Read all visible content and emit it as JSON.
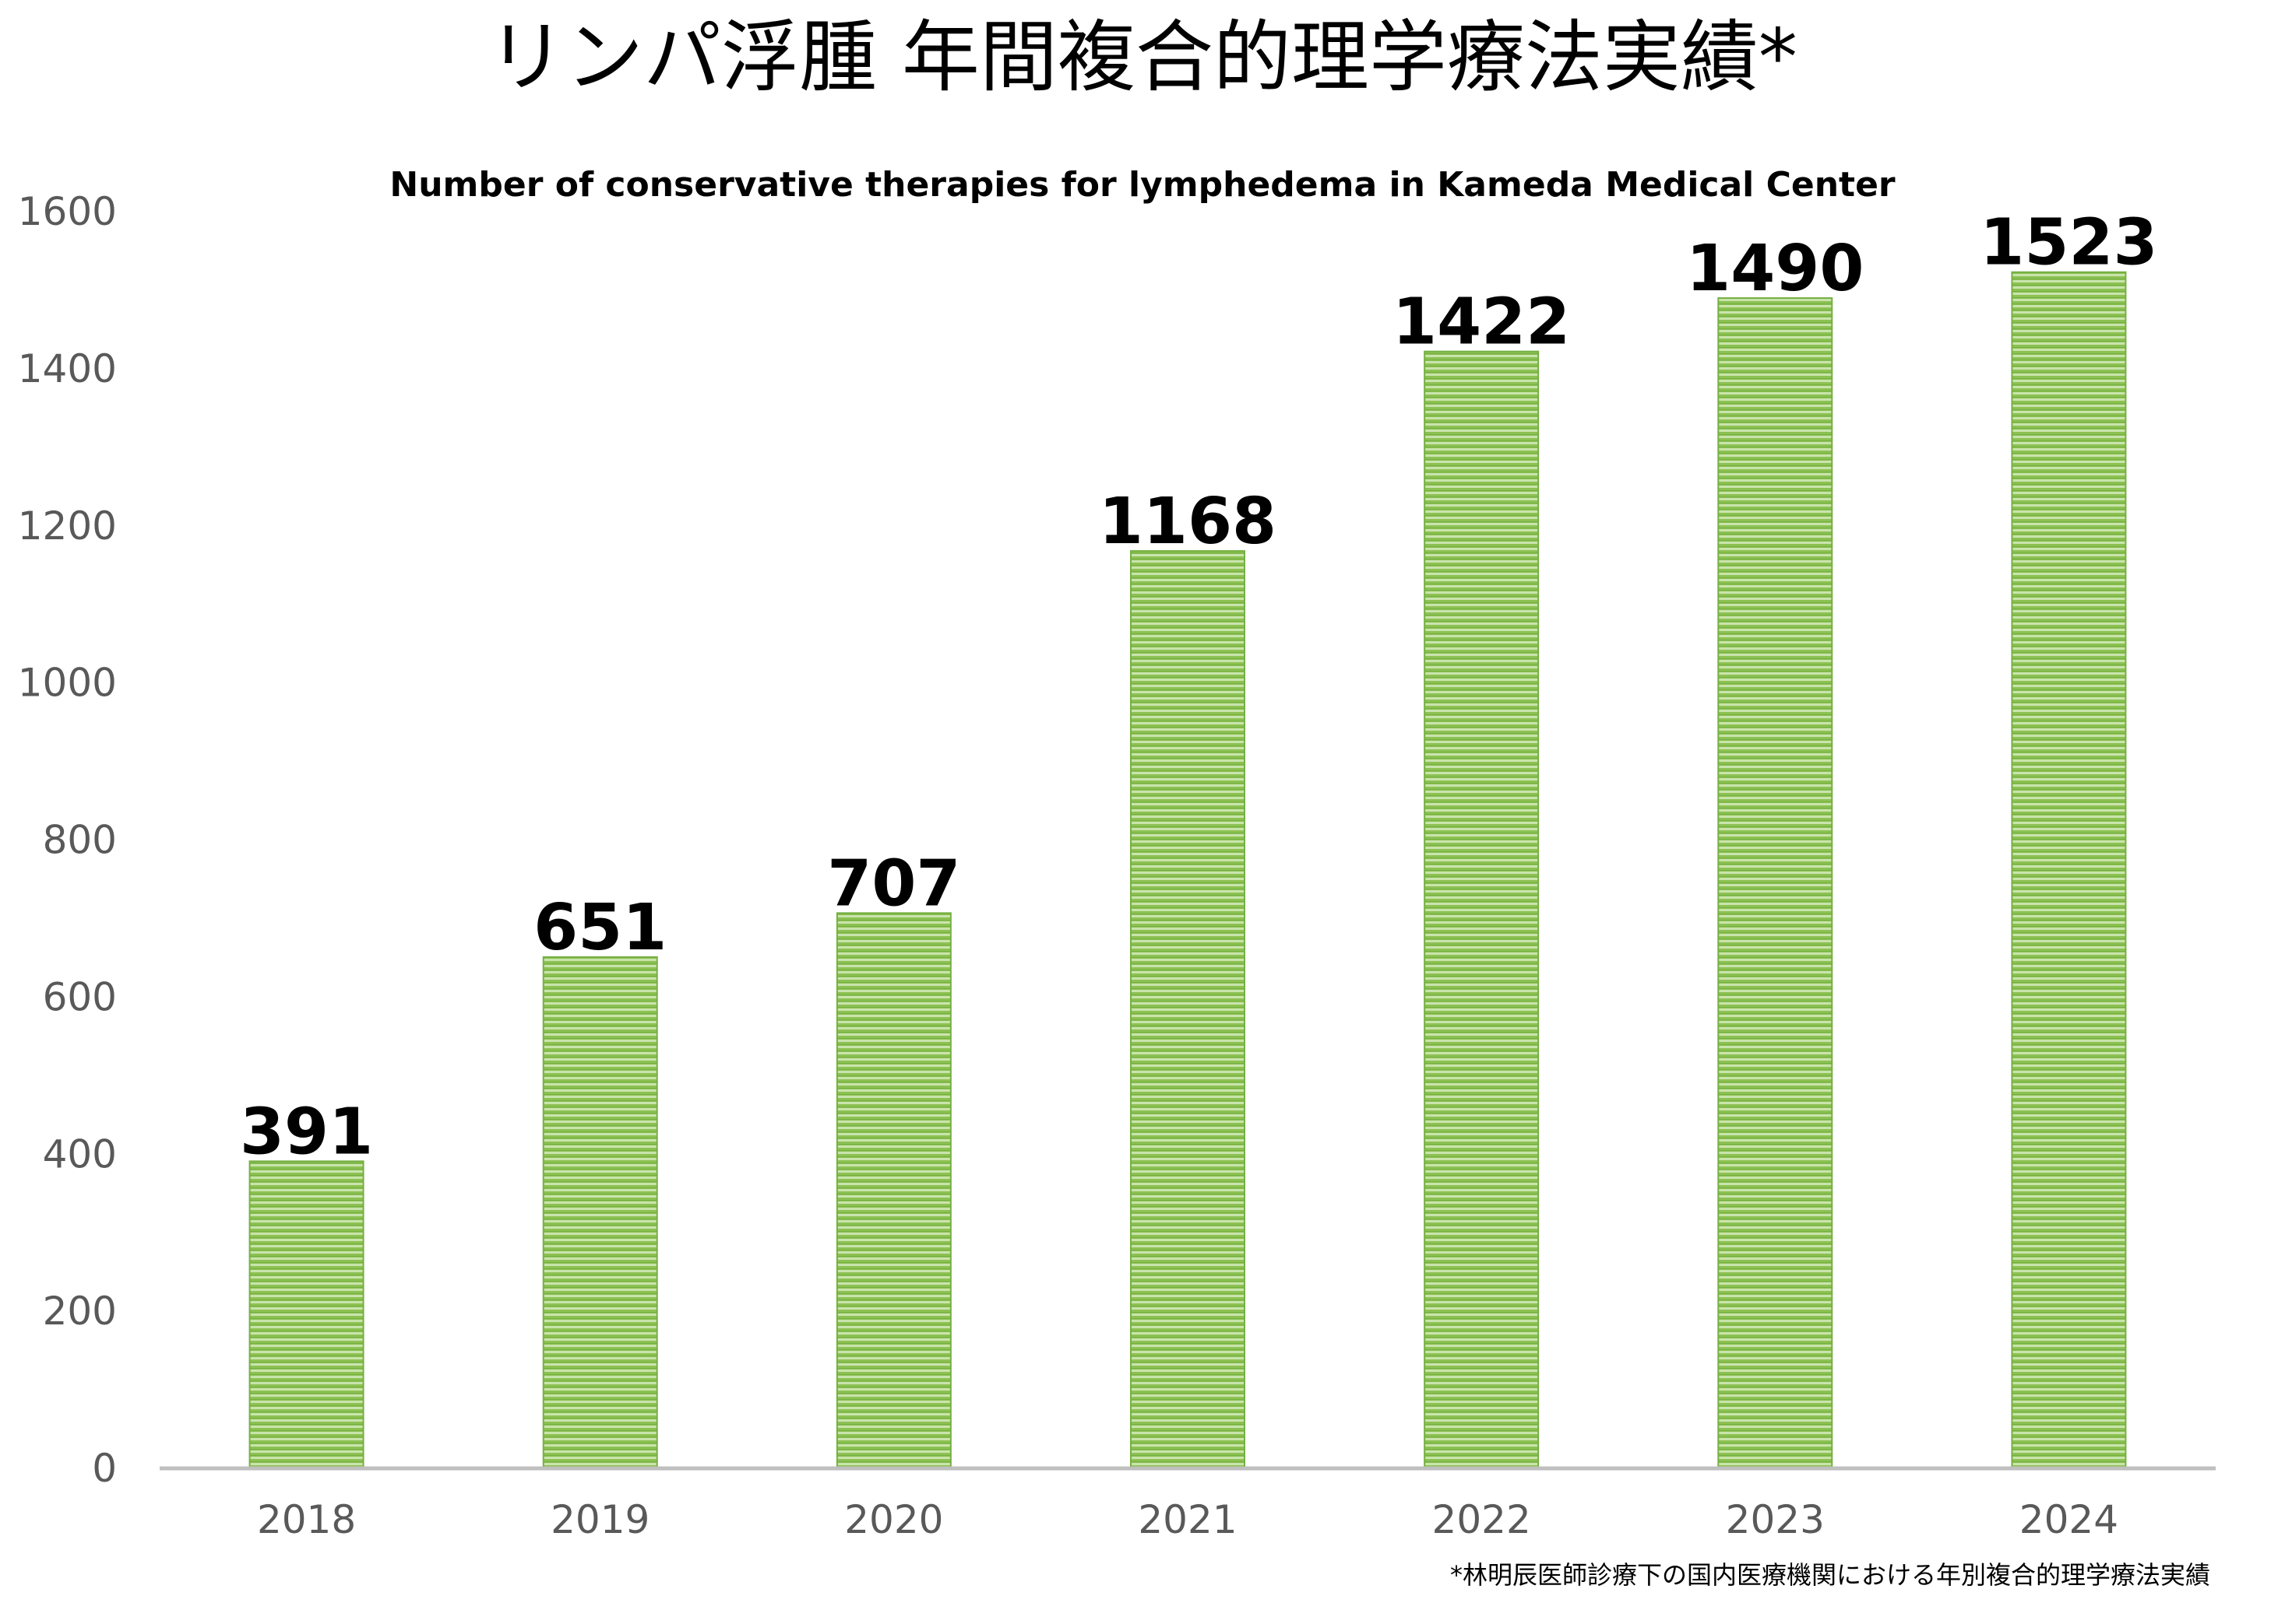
{
  "chart_data": {
    "type": "bar",
    "title": "リンパ浮腫 年間複合的理学療法実績*",
    "subtitle": "Number of conservative therapies for lymphedema in Kameda Medical Center",
    "footnote": "*林明辰医師診療下の国内医療機関における年別複合的理学療法実績",
    "categories": [
      "2018",
      "2019",
      "2020",
      "2021",
      "2022",
      "2023",
      "2024"
    ],
    "series": [
      {
        "values": [
          391,
          651,
          707,
          1168,
          1422,
          1490,
          1523
        ],
        "data_labels": [
          "391",
          "651",
          "707",
          "1168",
          "1422",
          "1490",
          "1523"
        ]
      }
    ],
    "xlabel": "",
    "ylabel": "",
    "ylim": [
      0,
      1600
    ],
    "yticks": [
      "0",
      "200",
      "400",
      "600",
      "800",
      "1000",
      "1200",
      "1400",
      "1600"
    ],
    "grid": false,
    "legend": "none",
    "colors": {
      "bar_fill": "#8cc152",
      "bar_stripe_light": "#c9e4ac",
      "bar_stripe_dark": "#76b043",
      "axis_line": "#bfbfbf",
      "tick_label": "#595959",
      "data_label": "#000000",
      "title": "#000000"
    }
  }
}
